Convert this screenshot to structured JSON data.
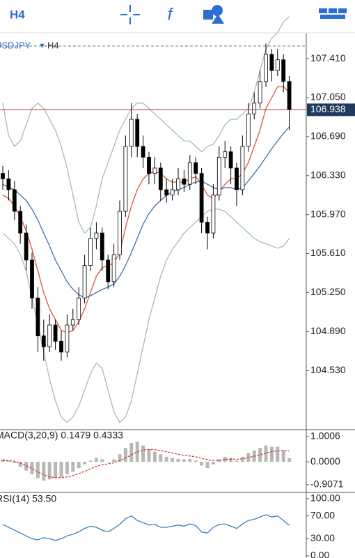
{
  "toolbar": {
    "timeframe": "H4",
    "function_icon": "f"
  },
  "chart_data": {
    "type": "candlestick",
    "symbol": "USDJPY",
    "timeframe": "H4",
    "open": [
      106.35,
      106.3,
      106.2,
      106.0,
      105.8,
      105.55,
      105.2,
      104.85,
      104.75,
      104.95,
      104.8,
      104.7,
      104.95,
      105.0,
      105.2,
      105.5,
      105.75,
      105.8,
      105.55,
      105.35,
      105.6,
      106.0,
      106.6,
      106.85,
      106.6,
      106.5,
      106.35,
      106.4,
      106.2,
      106.15,
      106.2,
      106.3,
      106.25,
      106.45,
      106.35,
      105.9,
      105.8,
      106.15,
      106.5,
      106.55,
      106.4,
      106.2,
      106.6,
      106.9,
      107.0,
      107.2,
      107.45,
      107.3,
      107.4,
      107.2
    ],
    "high": [
      106.42,
      106.38,
      106.28,
      106.05,
      105.88,
      105.62,
      105.3,
      105.0,
      105.05,
      105.0,
      104.9,
      105.05,
      105.1,
      105.3,
      105.6,
      105.85,
      105.9,
      105.85,
      105.6,
      105.7,
      106.1,
      106.7,
      107.0,
      106.9,
      106.7,
      106.55,
      106.5,
      106.45,
      106.3,
      106.3,
      106.4,
      106.38,
      106.52,
      106.5,
      106.4,
      105.95,
      106.25,
      106.6,
      106.65,
      106.6,
      106.45,
      106.7,
      107.0,
      107.1,
      107.3,
      107.55,
      107.5,
      107.5,
      107.45,
      107.25
    ],
    "low": [
      106.2,
      106.1,
      105.92,
      105.7,
      105.45,
      105.1,
      104.7,
      104.62,
      104.7,
      104.72,
      104.62,
      104.65,
      104.9,
      104.95,
      105.15,
      105.45,
      105.65,
      105.45,
      105.28,
      105.3,
      105.55,
      105.95,
      106.5,
      106.5,
      106.4,
      106.25,
      106.25,
      106.1,
      106.08,
      106.1,
      106.15,
      106.18,
      106.2,
      106.25,
      105.8,
      105.65,
      105.75,
      106.1,
      106.4,
      106.25,
      106.05,
      106.15,
      106.55,
      106.85,
      106.95,
      107.15,
      107.2,
      107.25,
      107.1,
      106.75
    ],
    "close": [
      106.3,
      106.2,
      106.0,
      105.8,
      105.55,
      105.2,
      104.85,
      104.75,
      104.95,
      104.8,
      104.7,
      104.95,
      105.0,
      105.2,
      105.5,
      105.75,
      105.8,
      105.55,
      105.35,
      105.6,
      106.0,
      106.6,
      106.85,
      106.6,
      106.5,
      106.35,
      106.4,
      106.2,
      106.15,
      106.2,
      106.3,
      106.25,
      106.45,
      106.35,
      105.9,
      105.8,
      106.15,
      106.5,
      106.55,
      106.4,
      106.2,
      106.6,
      106.9,
      107.0,
      107.2,
      107.45,
      107.3,
      107.4,
      107.2,
      106.938
    ],
    "current_price": 106.938,
    "ylim": [
      103.99,
      107.63
    ],
    "yticks": [
      {
        "value": 107.41,
        "label": "107.410"
      },
      {
        "value": 107.05,
        "label": "107.050"
      },
      {
        "value": 106.69,
        "label": "106.690"
      },
      {
        "value": 106.33,
        "label": "106.330"
      },
      {
        "value": 105.97,
        "label": "105.970"
      },
      {
        "value": 105.61,
        "label": "105.610"
      },
      {
        "value": 105.25,
        "label": "105.250"
      },
      {
        "value": 104.89,
        "label": "104.890"
      },
      {
        "value": 104.53,
        "label": "104.530"
      }
    ],
    "overlays": [
      {
        "color": "#9fbfae",
        "values": [
          107.0,
          106.7,
          106.6,
          106.65,
          106.8,
          106.95,
          107.0,
          106.95,
          106.85,
          106.75,
          106.6,
          106.4,
          106.15,
          105.9,
          105.8,
          105.85,
          106.05,
          106.3,
          106.45,
          106.6,
          106.75,
          106.85,
          106.95,
          107.0,
          107.0,
          106.95,
          106.9,
          106.85,
          106.8,
          106.75,
          106.7,
          106.65,
          106.65,
          106.6,
          106.55,
          106.6,
          106.62,
          106.7,
          106.8,
          106.85,
          106.85,
          106.9,
          106.95,
          107.1,
          107.3,
          107.5,
          107.6,
          107.65,
          107.75,
          107.8
        ]
      },
      {
        "color": "#9fbfae",
        "values": [
          105.8,
          105.75,
          105.7,
          105.6,
          105.45,
          105.2,
          104.95,
          104.7,
          104.45,
          104.25,
          104.1,
          104.05,
          104.1,
          104.2,
          104.35,
          104.5,
          104.6,
          104.55,
          104.35,
          104.15,
          104.05,
          104.1,
          104.25,
          104.5,
          104.75,
          105.0,
          105.2,
          105.4,
          105.55,
          105.65,
          105.72,
          105.8,
          105.85,
          105.9,
          105.95,
          106.0,
          106.02,
          106.02,
          106.0,
          105.95,
          105.9,
          105.85,
          105.8,
          105.75,
          105.72,
          105.7,
          105.68,
          105.66,
          105.68,
          105.75
        ]
      },
      {
        "color": "#d9553a",
        "values": [
          106.15,
          106.12,
          106.05,
          105.95,
          105.82,
          105.65,
          105.45,
          105.25,
          105.1,
          105.0,
          104.9,
          104.88,
          104.9,
          104.98,
          105.1,
          105.25,
          105.4,
          105.48,
          105.5,
          105.52,
          105.62,
          105.85,
          106.05,
          106.2,
          106.3,
          106.35,
          106.37,
          106.35,
          106.3,
          106.27,
          106.27,
          106.27,
          106.3,
          106.32,
          106.25,
          106.15,
          106.12,
          106.18,
          106.25,
          106.3,
          106.3,
          106.35,
          106.45,
          106.6,
          106.75,
          106.95,
          107.05,
          107.15,
          107.15,
          107.1
        ]
      },
      {
        "color": "#3f6fa8",
        "values": [
          106.25,
          106.22,
          106.2,
          106.15,
          106.1,
          106.02,
          105.92,
          105.8,
          105.68,
          105.55,
          105.45,
          105.35,
          105.28,
          105.23,
          105.2,
          105.22,
          105.25,
          105.28,
          105.3,
          105.33,
          105.4,
          105.5,
          105.62,
          105.75,
          105.88,
          105.98,
          106.05,
          106.1,
          106.15,
          106.18,
          106.2,
          106.22,
          106.25,
          106.27,
          106.28,
          106.25,
          106.22,
          106.2,
          106.22,
          106.22,
          106.2,
          106.22,
          106.28,
          106.35,
          106.42,
          106.5,
          106.58,
          106.65,
          106.72,
          106.78
        ]
      }
    ],
    "macd": {
      "label": "MACD(3,20,9) 0.1479 0.4333",
      "histogram": [
        0.1,
        0.05,
        -0.05,
        -0.2,
        -0.35,
        -0.5,
        -0.65,
        -0.75,
        -0.7,
        -0.65,
        -0.6,
        -0.5,
        -0.4,
        -0.25,
        -0.1,
        0.05,
        0.15,
        0.1,
        0.0,
        0.1,
        0.3,
        0.55,
        0.75,
        0.8,
        0.65,
        0.5,
        0.4,
        0.3,
        0.2,
        0.15,
        0.12,
        0.1,
        0.12,
        0.05,
        -0.15,
        -0.25,
        -0.1,
        0.1,
        0.2,
        0.15,
        0.05,
        0.2,
        0.35,
        0.45,
        0.55,
        0.65,
        0.6,
        0.6,
        0.45,
        0.1479
      ],
      "signal": [
        0.05,
        0.05,
        0.02,
        -0.05,
        -0.15,
        -0.27,
        -0.4,
        -0.52,
        -0.6,
        -0.63,
        -0.63,
        -0.6,
        -0.55,
        -0.47,
        -0.38,
        -0.28,
        -0.18,
        -0.12,
        -0.08,
        -0.04,
        0.05,
        0.15,
        0.28,
        0.4,
        0.47,
        0.49,
        0.48,
        0.45,
        0.4,
        0.35,
        0.3,
        0.26,
        0.23,
        0.2,
        0.14,
        0.08,
        0.05,
        0.06,
        0.09,
        0.11,
        0.1,
        0.12,
        0.17,
        0.22,
        0.28,
        0.35,
        0.4,
        0.44,
        0.45,
        0.4333
      ],
      "ylim": [
        -1.19,
        1.25
      ],
      "yticks": [
        {
          "value": 1.0006,
          "label": "1.0006"
        },
        {
          "value": 0,
          "label": "0.0000"
        },
        {
          "value": -0.9071,
          "label": "-0.9071"
        }
      ]
    },
    "rsi": {
      "label": "RSI(14) 53.50",
      "values": [
        55,
        50,
        45,
        40,
        35,
        30,
        28,
        32,
        30,
        27,
        30,
        35,
        38,
        42,
        48,
        52,
        50,
        45,
        42,
        48,
        55,
        65,
        70,
        62,
        58,
        54,
        55,
        50,
        50,
        52,
        54,
        52,
        56,
        53,
        42,
        40,
        50,
        55,
        56,
        52,
        48,
        56,
        62,
        64,
        68,
        72,
        68,
        70,
        62,
        53.5
      ],
      "ylim": [
        0,
        100
      ],
      "yticks": [
        {
          "value": 100,
          "label": "100.00"
        },
        {
          "value": 70,
          "label": "70.00"
        },
        {
          "value": 30,
          "label": "30.00"
        },
        {
          "value": 0,
          "label": "0.00"
        }
      ]
    }
  }
}
